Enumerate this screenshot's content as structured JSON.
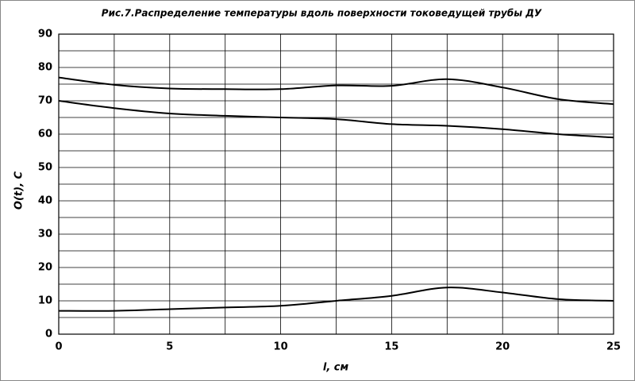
{
  "chart_data": {
    "type": "line",
    "title": "Рис.7.Распределение температуры вдоль поверхности токоведущей трубы ДУ",
    "x_label": "l, см",
    "y_label": "O(t), C",
    "x": [
      0,
      2.5,
      5,
      7.5,
      10,
      12.5,
      15,
      17.5,
      20,
      22.5,
      25
    ],
    "series": [
      {
        "color": "#000000",
        "values": [
          77,
          74.8,
          73.7,
          73.5,
          73.5,
          74.6,
          74.5,
          76.5,
          74,
          70.5,
          69
        ]
      },
      {
        "color": "#000000",
        "values": [
          70,
          67.8,
          66.2,
          65.5,
          65,
          64.5,
          63,
          62.5,
          61.5,
          60,
          59
        ]
      },
      {
        "color": "#000000",
        "values": [
          7,
          7,
          7.5,
          8,
          8.5,
          10,
          11.5,
          14,
          12.5,
          10.5,
          10
        ]
      }
    ],
    "xlim": [
      0,
      25
    ],
    "xticks": [
      0,
      5,
      10,
      15,
      20,
      25
    ],
    "x_minor_ticks": [
      2.5,
      7.5,
      12.5,
      17.5,
      22.5
    ],
    "ylim": [
      0,
      90
    ],
    "yticks": [
      0,
      10,
      20,
      30,
      40,
      50,
      60,
      70,
      80,
      90
    ],
    "y_minor_ticks": [
      5,
      15,
      25,
      35,
      45,
      55,
      65,
      75,
      85
    ],
    "grid": true,
    "smooth": true
  }
}
